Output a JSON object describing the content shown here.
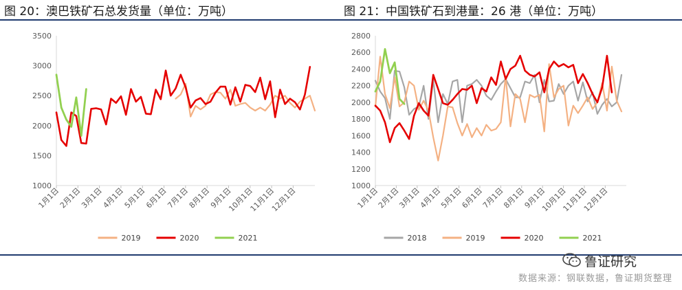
{
  "titles": {
    "left": "图 20：澳巴铁矿石总发货量（单位：万吨）",
    "right": "图 21：中国铁矿石到港量：26 港（单位：万吨）"
  },
  "footer": {
    "source": "数据来源：钢联数据，鲁证期货整理",
    "watermark": "鲁证研究"
  },
  "colors": {
    "2018": "#a6a6a6",
    "2019": "#f4b183",
    "2020": "#e50000",
    "2021": "#92d050",
    "rule": "#1f3a6e"
  },
  "chart_data": [
    {
      "type": "line",
      "title": "图 20：澳巴铁矿石总发货量（单位：万吨）",
      "ylim": [
        1000,
        3500
      ],
      "yticks": [
        1000,
        1500,
        2000,
        2500,
        3000,
        3500
      ],
      "xticks": [
        "1月1日",
        "2月1日",
        "3月1日",
        "4月1日",
        "5月1日",
        "6月1日",
        "7月1日",
        "8月1日",
        "9月1日",
        "10月1日",
        "11月1日",
        "12月1日"
      ],
      "x_period": "weekly",
      "legend_position": "bottom",
      "series": [
        {
          "name": "2019",
          "values": [
            null,
            null,
            null,
            null,
            null,
            null,
            null,
            null,
            null,
            null,
            null,
            null,
            null,
            null,
            null,
            null,
            null,
            null,
            null,
            null,
            null,
            null,
            null,
            null,
            2450,
            2520,
            2700,
            2150,
            2330,
            2270,
            2330,
            2520,
            2560,
            2550,
            2450,
            2600,
            2330,
            2360,
            2380,
            2300,
            2250,
            2300,
            2250,
            2350,
            2500,
            2450,
            2500,
            2380,
            2300,
            2400,
            2450,
            2500,
            2250
          ]
        },
        {
          "name": "2020",
          "values": [
            2220,
            1760,
            1660,
            2220,
            2160,
            1710,
            1700,
            2280,
            2290,
            2270,
            2020,
            2450,
            2380,
            2490,
            2180,
            2610,
            2400,
            2480,
            2200,
            2190,
            2600,
            2440,
            2920,
            2500,
            2620,
            2850,
            2640,
            2300,
            2420,
            2460,
            2360,
            2400,
            2550,
            2650,
            2650,
            2350,
            2640,
            2400,
            2680,
            2660,
            2560,
            2800,
            2440,
            2740,
            2140,
            2600,
            2360,
            2450,
            2390,
            2270,
            2520,
            2980
          ]
        },
        {
          "name": "2021",
          "values": [
            2850,
            2300,
            2100,
            1980,
            2470,
            1830,
            2610
          ]
        }
      ]
    },
    {
      "type": "line",
      "title": "图 21：中国铁矿石到港量：26 港（单位：万吨）",
      "ylim": [
        1000,
        2800
      ],
      "yticks": [
        1000,
        1200,
        1400,
        1600,
        1800,
        2000,
        2200,
        2400,
        2600,
        2800
      ],
      "xticks": [
        "1月1日",
        "2月1日",
        "3月1日",
        "4月1日",
        "5月1日",
        "6月1日",
        "7月1日",
        "8月1日",
        "9月1日",
        "10月1日",
        "11月1日",
        "12月1日"
      ],
      "x_period": "weekly",
      "legend_position": "bottom",
      "series": [
        {
          "name": "2018",
          "values": [
            2260,
            2130,
            2050,
            1800,
            2380,
            2370,
            2180,
            1850,
            1920,
            1950,
            2200,
            1800,
            2270,
            1760,
            2100,
            1980,
            2250,
            2270,
            1760,
            2200,
            2220,
            2270,
            2200,
            2080,
            2030,
            2130,
            2220,
            2280,
            2170,
            2060,
            2060,
            2250,
            2230,
            2330,
            2000,
            2270,
            2010,
            2020,
            2220,
            2100,
            2200,
            2250,
            2020,
            2240,
            2010,
            2120,
            1860,
            1970,
            2040,
            1950,
            2000,
            2330
          ]
        },
        {
          "name": "2019",
          "values": [
            1950,
            2550,
            2100,
            1930,
            2300,
            1950,
            2000,
            2250,
            2200,
            1910,
            2020,
            1900,
            1580,
            1300,
            1600,
            1950,
            1940,
            1750,
            1600,
            1740,
            1580,
            1690,
            1600,
            1730,
            1660,
            1680,
            1760,
            2310,
            1710,
            2100,
            2040,
            1760,
            2090,
            2060,
            2090,
            1650,
            2460,
            2060,
            2160,
            2200,
            1720,
            1960,
            1870,
            1960,
            2060,
            1920,
            2000,
            2230,
            1900,
            2430,
            2020,
            1890
          ]
        },
        {
          "name": "2020",
          "values": [
            1960,
            1900,
            1760,
            1520,
            1690,
            1750,
            1660,
            1560,
            1840,
            1990,
            1900,
            1840,
            2330,
            2160,
            1990,
            1970,
            2030,
            2100,
            2160,
            2150,
            2200,
            1990,
            2170,
            2130,
            2300,
            2210,
            2490,
            2280,
            2400,
            2440,
            2560,
            2380,
            2330,
            2310,
            2360,
            2120,
            2400,
            2490,
            2430,
            2460,
            2420,
            2450,
            2230,
            2340,
            2230,
            2100,
            2000,
            2180,
            2560,
            2120
          ]
        },
        {
          "name": "2021",
          "values": [
            2130,
            2250,
            2640,
            2350,
            2480,
            2040,
            1980
          ]
        }
      ]
    }
  ]
}
